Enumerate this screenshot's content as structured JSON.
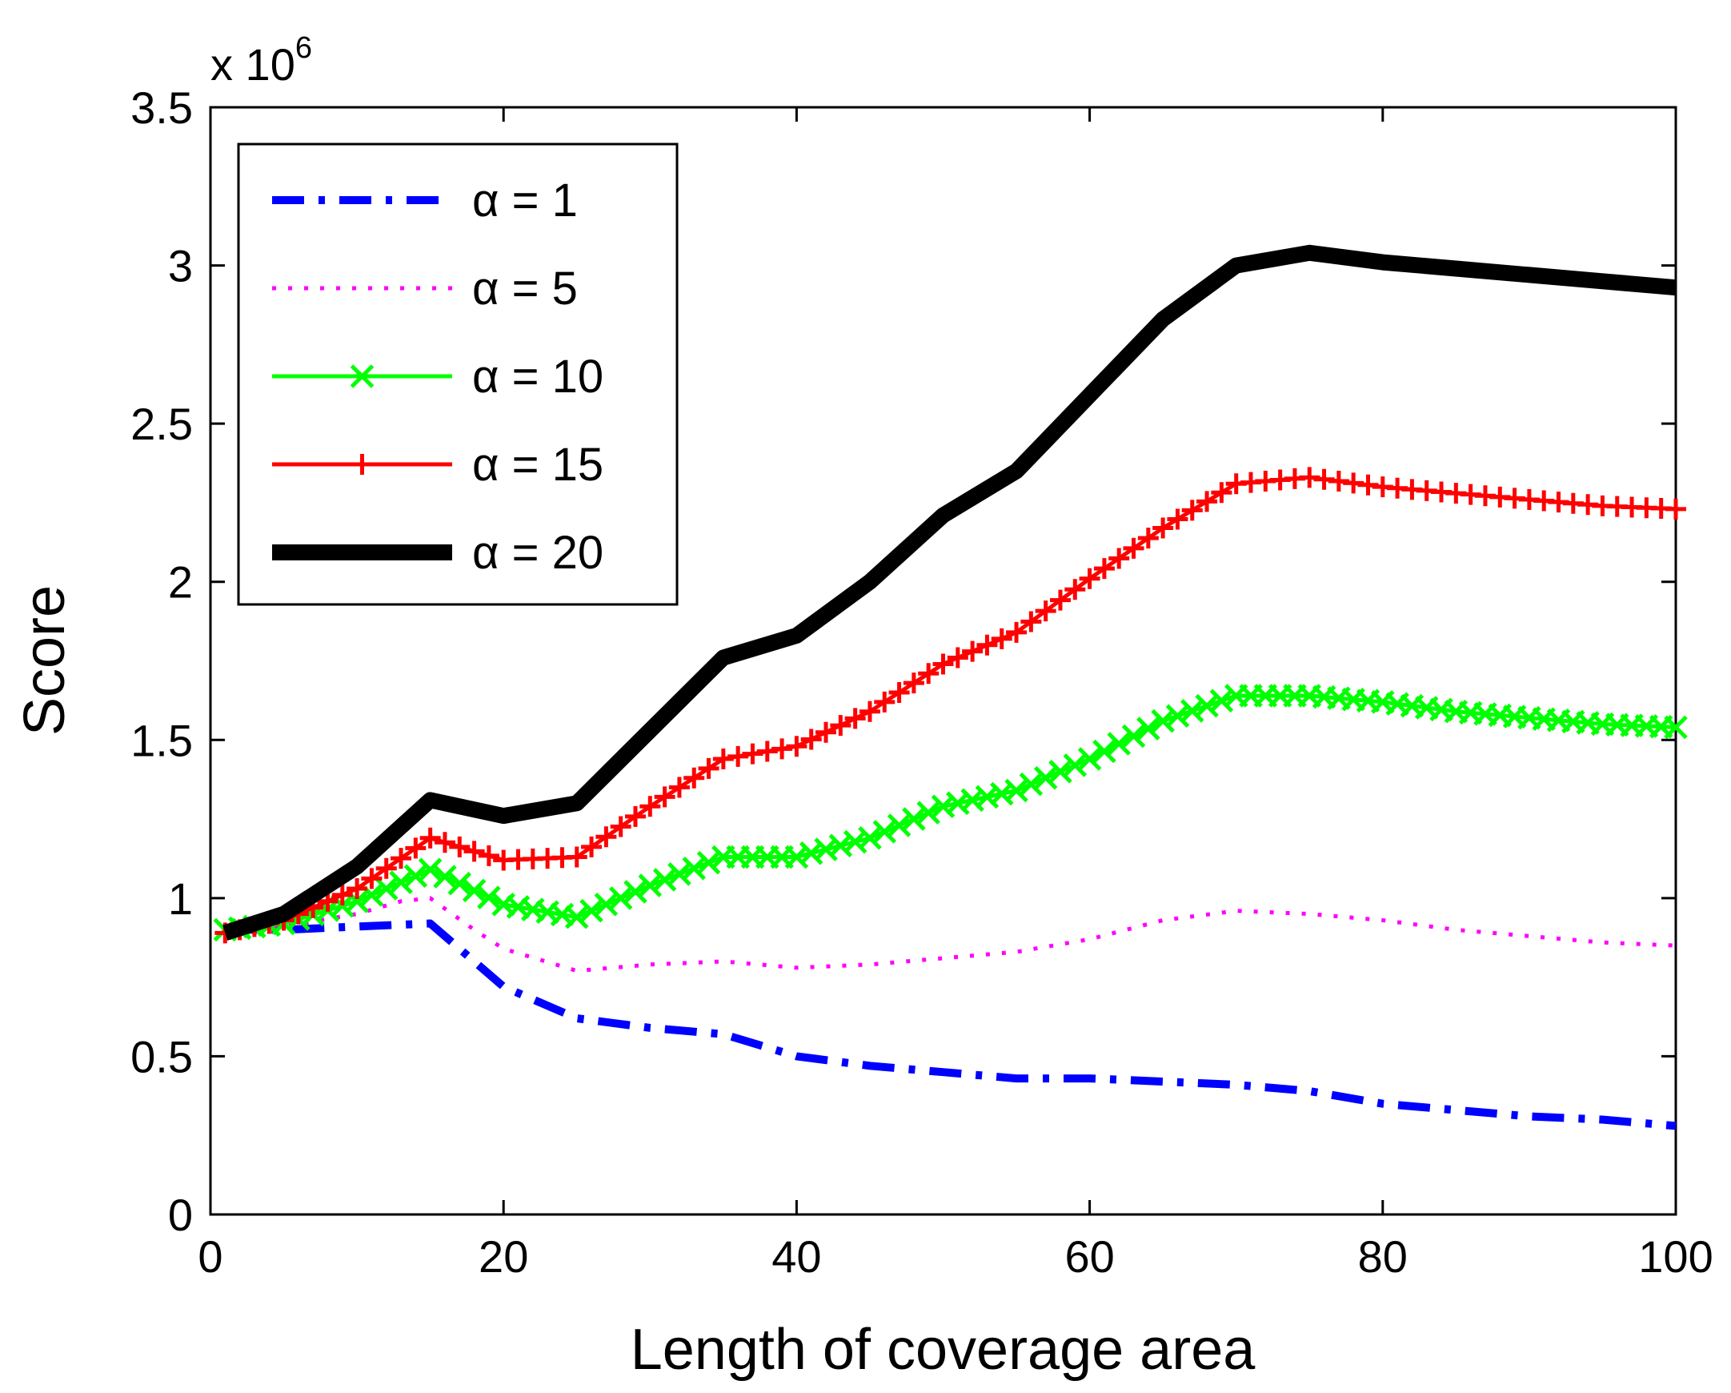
{
  "chart_data": {
    "type": "line",
    "title": "",
    "xlabel": "Length of coverage area",
    "ylabel": "Score",
    "y_multiplier_base": "x 10",
    "y_multiplier_exp": "6",
    "xlim": [
      0,
      100
    ],
    "ylim": [
      0,
      3.5
    ],
    "x_ticks": [
      0,
      20,
      40,
      60,
      80,
      100
    ],
    "y_ticks": [
      0,
      0.5,
      1,
      1.5,
      2,
      2.5,
      3,
      3.5
    ],
    "x_tick_labels": [
      "0",
      "20",
      "40",
      "60",
      "80",
      "100"
    ],
    "y_tick_labels": [
      "0",
      "0.5",
      "1",
      "1.5",
      "2",
      "2.5",
      "3",
      "3.5"
    ],
    "grid": false,
    "legend_position": "top-left",
    "series": [
      {
        "name": "α = 1",
        "color": "#0000ff",
        "style": "dashdot",
        "marker": "none",
        "x": [
          1,
          5,
          10,
          15,
          20,
          25,
          30,
          35,
          40,
          45,
          50,
          55,
          60,
          65,
          70,
          75,
          80,
          85,
          90,
          95,
          100
        ],
        "y": [
          0.9,
          0.9,
          0.91,
          0.92,
          0.72,
          0.62,
          0.59,
          0.57,
          0.5,
          0.47,
          0.45,
          0.43,
          0.43,
          0.42,
          0.41,
          0.39,
          0.35,
          0.33,
          0.31,
          0.3,
          0.28
        ]
      },
      {
        "name": "α = 5",
        "color": "#ff00ff",
        "style": "dotted",
        "marker": "none",
        "x": [
          1,
          5,
          10,
          13,
          15,
          18,
          20,
          25,
          30,
          35,
          40,
          45,
          50,
          55,
          60,
          65,
          70,
          75,
          80,
          85,
          90,
          95,
          100
        ],
        "y": [
          0.89,
          0.91,
          0.95,
          0.99,
          1.0,
          0.9,
          0.84,
          0.77,
          0.79,
          0.8,
          0.78,
          0.79,
          0.81,
          0.83,
          0.87,
          0.93,
          0.96,
          0.95,
          0.93,
          0.9,
          0.88,
          0.86,
          0.85
        ]
      },
      {
        "name": "α = 10",
        "color": "#00ff00",
        "style": "solid",
        "marker": "x",
        "x": [
          1,
          5,
          10,
          15,
          20,
          25,
          30,
          35,
          40,
          45,
          50,
          55,
          60,
          65,
          70,
          75,
          80,
          85,
          90,
          95,
          100
        ],
        "y": [
          0.9,
          0.92,
          0.99,
          1.09,
          0.98,
          0.94,
          1.04,
          1.13,
          1.13,
          1.19,
          1.29,
          1.34,
          1.44,
          1.56,
          1.64,
          1.64,
          1.62,
          1.59,
          1.57,
          1.55,
          1.54
        ]
      },
      {
        "name": "α = 15",
        "color": "#ff0000",
        "style": "solid",
        "marker": "+",
        "x": [
          1,
          5,
          10,
          15,
          20,
          25,
          30,
          35,
          40,
          45,
          50,
          55,
          60,
          65,
          70,
          75,
          80,
          85,
          90,
          95,
          100
        ],
        "y": [
          0.89,
          0.93,
          1.03,
          1.19,
          1.12,
          1.13,
          1.29,
          1.44,
          1.48,
          1.59,
          1.74,
          1.84,
          2.01,
          2.17,
          2.31,
          2.33,
          2.3,
          2.28,
          2.26,
          2.24,
          2.23
        ]
      },
      {
        "name": "α = 20",
        "color": "#000000",
        "style": "solid",
        "marker": "none",
        "x": [
          1,
          5,
          10,
          15,
          20,
          25,
          30,
          35,
          40,
          45,
          50,
          55,
          60,
          65,
          70,
          75,
          80,
          85,
          90,
          95,
          100
        ],
        "y": [
          0.89,
          0.95,
          1.1,
          1.31,
          1.26,
          1.3,
          1.53,
          1.76,
          1.83,
          2.0,
          2.21,
          2.35,
          2.59,
          2.83,
          3.0,
          3.04,
          3.01,
          2.99,
          2.97,
          2.95,
          2.93
        ]
      }
    ]
  }
}
